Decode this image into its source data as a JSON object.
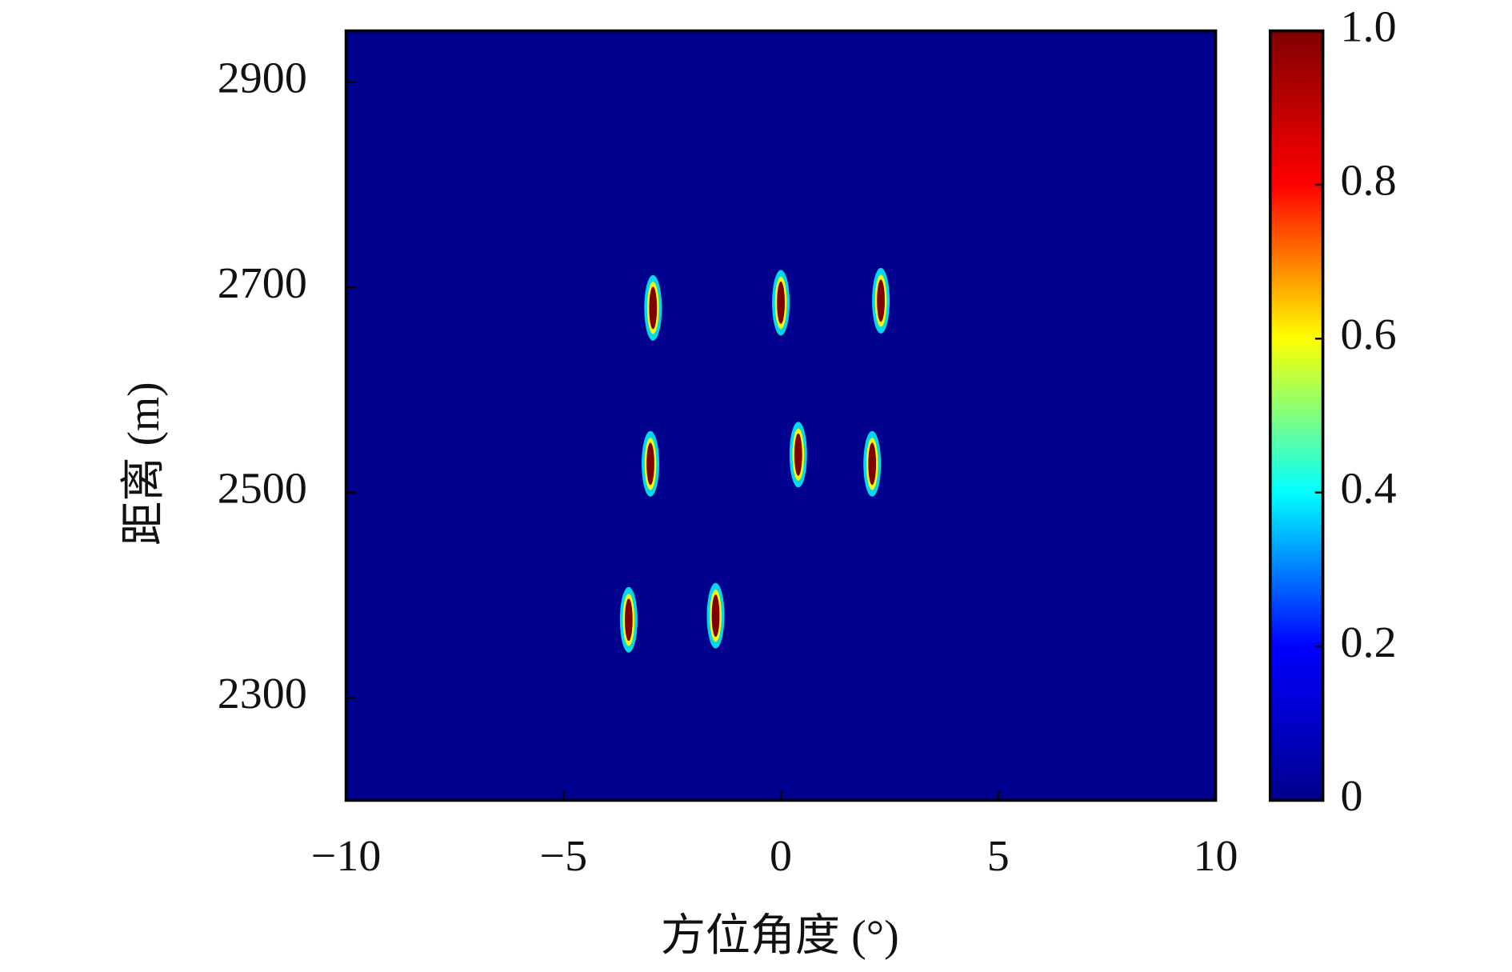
{
  "chart_data": {
    "type": "heatmap",
    "xlabel": "方位角度 (°)",
    "ylabel": "距离 (m)",
    "x": [
      -2.94,
      0.0,
      2.3,
      -3.0,
      0.4,
      2.1,
      -3.5,
      -1.5
    ],
    "y": [
      2680,
      2685,
      2687,
      2528,
      2537,
      2528,
      2376,
      2380
    ],
    "values": [
      1,
      1,
      1,
      1,
      1,
      1,
      1,
      1
    ],
    "xlim": [
      -10,
      10
    ],
    "xticks": [
      {
        "value": -10,
        "label": "−10"
      },
      {
        "value": -5,
        "label": "−5"
      },
      0,
      5,
      10
    ],
    "ylim": [
      2200,
      2950
    ],
    "yticks": [
      2300,
      2500,
      2700,
      2900
    ],
    "background": "#00008f",
    "colormap": [
      "#00008f",
      "#0000ff",
      "#00ffff",
      "#ffff00",
      "#ff0000",
      "#800000"
    ],
    "clim": [
      0,
      1
    ],
    "cticks": [
      0,
      0.2,
      0.4,
      0.6,
      0.8,
      {
        "value": 1,
        "label": "1.0"
      }
    ]
  }
}
